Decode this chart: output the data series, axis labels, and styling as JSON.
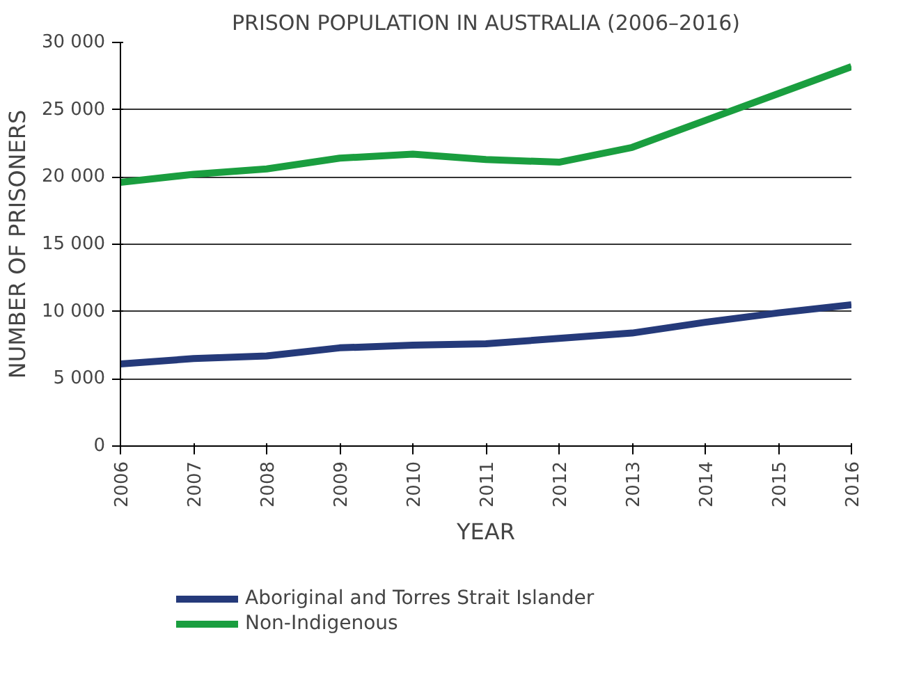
{
  "chart_data": {
    "type": "line",
    "title": "PRISON POPULATION IN AUSTRALIA (2006–2016)",
    "xlabel": "YEAR",
    "ylabel": "NUMBER OF PRISONERS",
    "x": [
      2006,
      2007,
      2008,
      2009,
      2010,
      2011,
      2012,
      2013,
      2014,
      2015,
      2016
    ],
    "series": [
      {
        "name": "Aboriginal and Torres Strait Islander",
        "color": "#253a7a",
        "values": [
          6100,
          6500,
          6700,
          7300,
          7500,
          7600,
          8000,
          8400,
          9200,
          9900,
          10500
        ]
      },
      {
        "name": "Non-Indigenous",
        "color": "#1a9e3f",
        "values": [
          19600,
          20200,
          20600,
          21400,
          21700,
          21300,
          21100,
          22200,
          24200,
          26200,
          28200
        ]
      }
    ],
    "xlim": [
      2006,
      2016
    ],
    "xticks": [
      2006,
      2007,
      2008,
      2009,
      2010,
      2011,
      2012,
      2013,
      2014,
      2015,
      2016
    ],
    "ylim": [
      0,
      30000
    ],
    "yticks": [
      0,
      {
        "value": 5000,
        "label": "5 000"
      },
      {
        "value": 10000,
        "label": "10 000"
      },
      {
        "value": 15000,
        "label": "15 000"
      },
      {
        "value": 20000,
        "label": "20 000"
      },
      {
        "value": 25000,
        "label": "25 000"
      },
      {
        "value": 30000,
        "label": "30 000"
      }
    ],
    "grid": "y",
    "legend": "bottom",
    "marker": "none",
    "line_style": "solid"
  }
}
